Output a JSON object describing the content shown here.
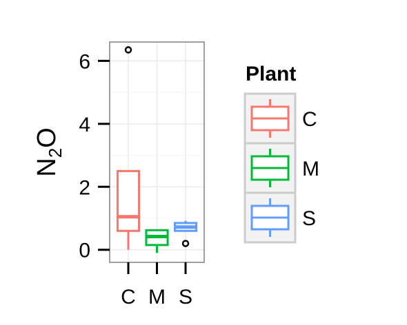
{
  "chart_data": {
    "type": "box",
    "title": "",
    "xlabel": "",
    "ylabel": {
      "main": "N",
      "sub": "2",
      "tail": "O"
    },
    "ylim": [
      -0.4,
      6.6
    ],
    "yticks": [
      0,
      2,
      4,
      6
    ],
    "grid": true,
    "legend": {
      "title": "Plant",
      "position": "right"
    },
    "categories": [
      "C",
      "M",
      "S"
    ],
    "series": [
      {
        "name": "C",
        "color": "#F8766D",
        "q1": 0.6,
        "median": 1.05,
        "q3": 2.5,
        "whisker_low": 0.0,
        "whisker_high": 2.5,
        "outliers": [
          6.35
        ]
      },
      {
        "name": "M",
        "color": "#00BA38",
        "q1": 0.15,
        "median": 0.42,
        "q3": 0.62,
        "whisker_low": -0.1,
        "whisker_high": 0.62,
        "outliers": []
      },
      {
        "name": "S",
        "color": "#619CFF",
        "q1": 0.6,
        "median": 0.72,
        "q3": 0.85,
        "whisker_low": 0.6,
        "whisker_high": 0.92,
        "outliers": [
          0.2
        ]
      }
    ]
  }
}
